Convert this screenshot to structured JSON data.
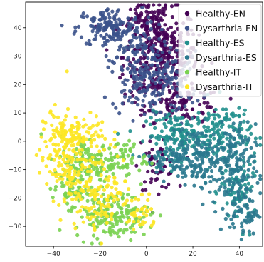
{
  "chart_data": {
    "type": "scatter",
    "title": "",
    "xlabel": "",
    "ylabel": "",
    "xlim": [
      -52,
      50
    ],
    "ylim": [
      -37,
      49
    ],
    "x_ticks": [
      -40,
      -20,
      0,
      20,
      40
    ],
    "y_ticks": [
      -30,
      -20,
      -10,
      0,
      10,
      20,
      30,
      40
    ],
    "x_tick_labels": [
      "−40",
      "−20",
      "0",
      "20",
      "40"
    ],
    "y_tick_labels": [
      "−30",
      "−20",
      "−10",
      "0",
      "10",
      "20",
      "30",
      "40"
    ],
    "grid": false,
    "legend_position": "top-right",
    "series": [
      {
        "name": "Healthy-EN",
        "color": "#440154",
        "clusters": [
          {
            "cx": 6,
            "cy": 30,
            "sx": 8,
            "sy": 9,
            "n": 360
          },
          {
            "cx": 0,
            "cy": 42,
            "sx": 5,
            "sy": 3,
            "n": 60
          },
          {
            "cx": 17,
            "cy": 13,
            "sx": 8,
            "sy": 3,
            "n": 70
          },
          {
            "cx": 5,
            "cy": -9,
            "sx": 4,
            "sy": 4,
            "n": 55
          }
        ]
      },
      {
        "name": "Dysarthria-EN",
        "color": "#3b528b",
        "clusters": [
          {
            "cx": -16,
            "cy": 40,
            "sx": 7,
            "sy": 3.5,
            "n": 150
          },
          {
            "cx": -3,
            "cy": 25,
            "sx": 6,
            "sy": 8,
            "n": 190
          },
          {
            "cx": 12,
            "cy": 22,
            "sx": 6,
            "sy": 6,
            "n": 90
          }
        ]
      },
      {
        "name": "Healthy-ES",
        "color": "#21908d",
        "clusters": [
          {
            "cx": 14,
            "cy": 2,
            "sx": 7,
            "sy": 4,
            "n": 150
          },
          {
            "cx": 33,
            "cy": 3,
            "sx": 6,
            "sy": 6,
            "n": 120
          },
          {
            "cx": 40,
            "cy": -18,
            "sx": 4,
            "sy": 6,
            "n": 70
          }
        ]
      },
      {
        "name": "Dysarthria-ES",
        "color": "#2a788e",
        "clusters": [
          {
            "cx": 23,
            "cy": -5,
            "sx": 7,
            "sy": 5,
            "n": 160
          },
          {
            "cx": 37,
            "cy": -10,
            "sx": 5,
            "sy": 8,
            "n": 140
          },
          {
            "cx": 42,
            "cy": -25,
            "sx": 3,
            "sy": 4,
            "n": 60
          },
          {
            "cx": 10,
            "cy": -7,
            "sx": 5,
            "sy": 3,
            "n": 50
          }
        ]
      },
      {
        "name": "Healthy-IT",
        "color": "#7ad151",
        "clusters": [
          {
            "cx": -25,
            "cy": -8,
            "sx": 6,
            "sy": 5,
            "n": 140
          },
          {
            "cx": -15,
            "cy": -26,
            "sx": 8,
            "sy": 4,
            "n": 170
          },
          {
            "cx": -10,
            "cy": -6,
            "sx": 5,
            "sy": 3,
            "n": 60
          },
          {
            "cx": -33,
            "cy": -17,
            "sx": 4,
            "sy": 3,
            "n": 40
          }
        ]
      },
      {
        "name": "Dysarthria-IT",
        "color": "#fde725",
        "clusters": [
          {
            "cx": -36,
            "cy": -4,
            "sx": 5,
            "sy": 8,
            "n": 170
          },
          {
            "cx": -28,
            "cy": 3,
            "sx": 6,
            "sy": 3,
            "n": 60
          },
          {
            "cx": -20,
            "cy": -17,
            "sx": 7,
            "sy": 7,
            "n": 140
          },
          {
            "cx": -2,
            "cy": -26,
            "sx": 3,
            "sy": 4,
            "n": 30
          }
        ]
      }
    ]
  }
}
